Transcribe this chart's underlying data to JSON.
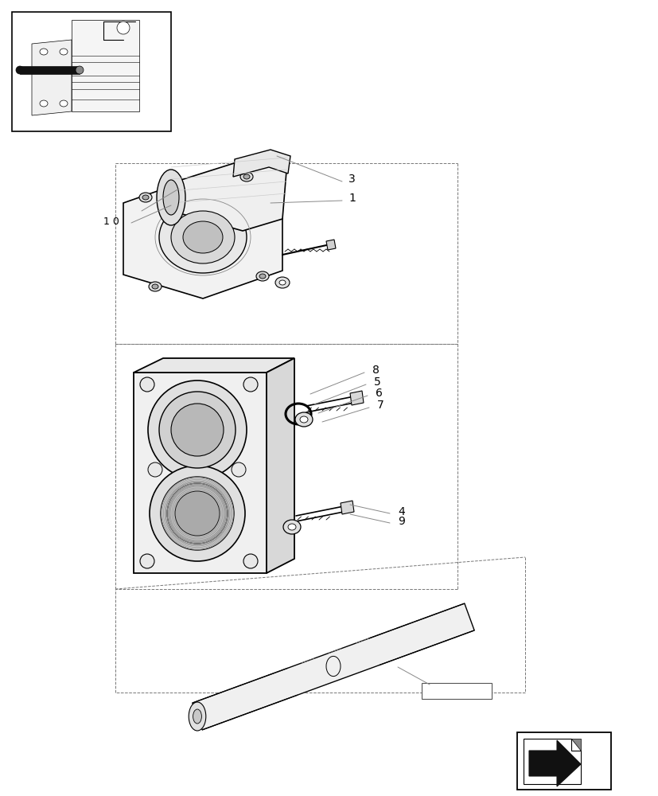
{
  "bg_color": "#ffffff",
  "lc": "#000000",
  "gray_line": "#aaaaaa",
  "light_gray_fill": "#f0f0f0",
  "mid_gray_fill": "#e0e0e0",
  "dark_fill": "#cccccc"
}
